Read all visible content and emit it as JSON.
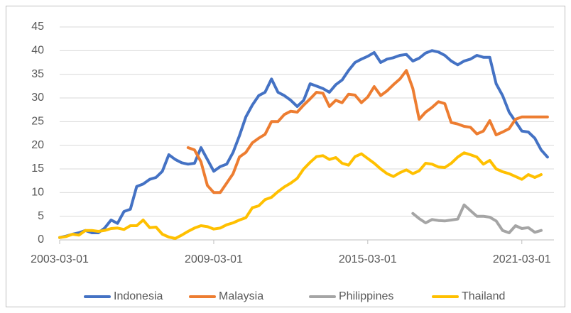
{
  "chart_data": {
    "type": "line",
    "x": [
      "2003-03-01",
      "2003-06-01",
      "2003-09-01",
      "2003-12-01",
      "2004-03-01",
      "2004-06-01",
      "2004-09-01",
      "2004-12-01",
      "2005-03-01",
      "2005-06-01",
      "2005-09-01",
      "2005-12-01",
      "2006-03-01",
      "2006-06-01",
      "2006-09-01",
      "2006-12-01",
      "2007-03-01",
      "2007-06-01",
      "2007-09-01",
      "2007-12-01",
      "2008-03-01",
      "2008-06-01",
      "2008-09-01",
      "2008-12-01",
      "2009-03-01",
      "2009-06-01",
      "2009-09-01",
      "2009-12-01",
      "2010-03-01",
      "2010-06-01",
      "2010-09-01",
      "2010-12-01",
      "2011-03-01",
      "2011-06-01",
      "2011-09-01",
      "2011-12-01",
      "2012-03-01",
      "2012-06-01",
      "2012-09-01",
      "2012-12-01",
      "2013-03-01",
      "2013-06-01",
      "2013-09-01",
      "2013-12-01",
      "2014-03-01",
      "2014-06-01",
      "2014-09-01",
      "2014-12-01",
      "2015-03-01",
      "2015-06-01",
      "2015-09-01",
      "2015-12-01",
      "2016-03-01",
      "2016-06-01",
      "2016-09-01",
      "2016-12-01",
      "2017-03-01",
      "2017-06-01",
      "2017-09-01",
      "2017-12-01",
      "2018-03-01",
      "2018-06-01",
      "2018-09-01",
      "2018-12-01",
      "2019-03-01",
      "2019-06-01",
      "2019-09-01",
      "2019-12-01",
      "2020-03-01",
      "2020-06-01",
      "2020-09-01",
      "2020-12-01",
      "2021-03-01",
      "2021-06-01",
      "2021-09-01",
      "2021-12-01",
      "2022-03-01"
    ],
    "series": [
      {
        "name": "Indonesia",
        "color": "#4472c4",
        "values": [
          0.5,
          0.8,
          1.2,
          1.5,
          2.0,
          1.5,
          1.5,
          2.5,
          4.2,
          3.5,
          6.0,
          6.5,
          11.3,
          11.8,
          12.8,
          13.2,
          14.5,
          18.0,
          17.0,
          16.3,
          16.0,
          16.2,
          19.5,
          17.0,
          14.5,
          15.5,
          16.0,
          18.5,
          22,
          26,
          28.5,
          30.5,
          31.2,
          34,
          31.2,
          30.5,
          29.5,
          28.2,
          29.5,
          33,
          32.5,
          32,
          31.2,
          32.8,
          33.8,
          35.8,
          37.5,
          38.2,
          38.8,
          39.6,
          37.5,
          38.2,
          38.5,
          39.0,
          39.2,
          37.8,
          38.4,
          39.5,
          40,
          39.7,
          39,
          37.8,
          37,
          37.8,
          38.2,
          39,
          38.6,
          38.6,
          33,
          30.5,
          27,
          25,
          23,
          22.8,
          21.5,
          19,
          17.5
        ]
      },
      {
        "name": "Malaysia",
        "color": "#ed7d31",
        "values": [
          null,
          null,
          null,
          null,
          null,
          null,
          null,
          null,
          null,
          null,
          null,
          null,
          null,
          null,
          null,
          null,
          null,
          null,
          null,
          null,
          19.5,
          19,
          16.5,
          11.5,
          10.0,
          10,
          12,
          14,
          17.5,
          18.5,
          20.5,
          21.5,
          22.3,
          25,
          25,
          26.5,
          27.2,
          27.0,
          28.5,
          29.8,
          31.2,
          31,
          28.2,
          29.5,
          29,
          30.8,
          30.6,
          29,
          30.2,
          32.4,
          30.5,
          31.5,
          32.8,
          34,
          35.8,
          32,
          25.5,
          27,
          28,
          29.2,
          28.8,
          24.8,
          24.5,
          24,
          23.8,
          22.4,
          23,
          25.2,
          22.2,
          22.8,
          23.5,
          25.5,
          26,
          26,
          26,
          26,
          26
        ]
      },
      {
        "name": "Philippines",
        "color": "#a5a5a5",
        "values": [
          null,
          null,
          null,
          null,
          null,
          null,
          null,
          null,
          null,
          null,
          null,
          null,
          null,
          null,
          null,
          null,
          null,
          null,
          null,
          null,
          null,
          null,
          null,
          null,
          null,
          null,
          null,
          null,
          null,
          null,
          null,
          null,
          null,
          null,
          null,
          null,
          null,
          null,
          null,
          null,
          null,
          null,
          null,
          null,
          null,
          null,
          null,
          null,
          null,
          null,
          null,
          null,
          null,
          null,
          null,
          5.6,
          4.5,
          3.6,
          4.3,
          4.1,
          4.0,
          4.2,
          4.4,
          7.4,
          6.2,
          5.0,
          5.0,
          4.8,
          4.0,
          2.0,
          1.5,
          3.0,
          2.4,
          2.6,
          1.6,
          2.0,
          null
        ]
      },
      {
        "name": "Thailand",
        "color": "#ffc000",
        "values": [
          0.5,
          0.7,
          1.2,
          1.0,
          2.0,
          2.0,
          1.8,
          2.0,
          2.4,
          2.5,
          2.2,
          3.0,
          3.0,
          4.2,
          2.6,
          2.7,
          1.2,
          0.6,
          0.3,
          1.0,
          1.8,
          2.5,
          3.0,
          2.8,
          2.3,
          2.5,
          3.2,
          3.6,
          4.2,
          4.7,
          6.8,
          7.2,
          8.5,
          9.0,
          10.2,
          11.2,
          12.0,
          13.0,
          15.0,
          16.4,
          17.6,
          17.8,
          17.0,
          17.4,
          16.2,
          15.8,
          17.6,
          18.2,
          17.2,
          16.2,
          15.0,
          14.0,
          13.4,
          14.2,
          14.8,
          14.0,
          14.6,
          16.2,
          16.0,
          15.4,
          15.3,
          16.2,
          17.5,
          18.4,
          18.0,
          17.5,
          16.0,
          16.8,
          15.0,
          14.4,
          14.0,
          13.4,
          12.8,
          13.8,
          13.2,
          13.8,
          null
        ]
      }
    ],
    "xlim": [
      "2003-03-01",
      "2022-06-01"
    ],
    "xticks": [
      "2003-03-01",
      "2009-03-01",
      "2015-03-01",
      "2021-03-01"
    ],
    "ylim": [
      0,
      45
    ],
    "yticks": [
      0,
      5,
      10,
      15,
      20,
      25,
      30,
      35,
      40,
      45
    ],
    "grid": true,
    "legend": "bottom"
  }
}
